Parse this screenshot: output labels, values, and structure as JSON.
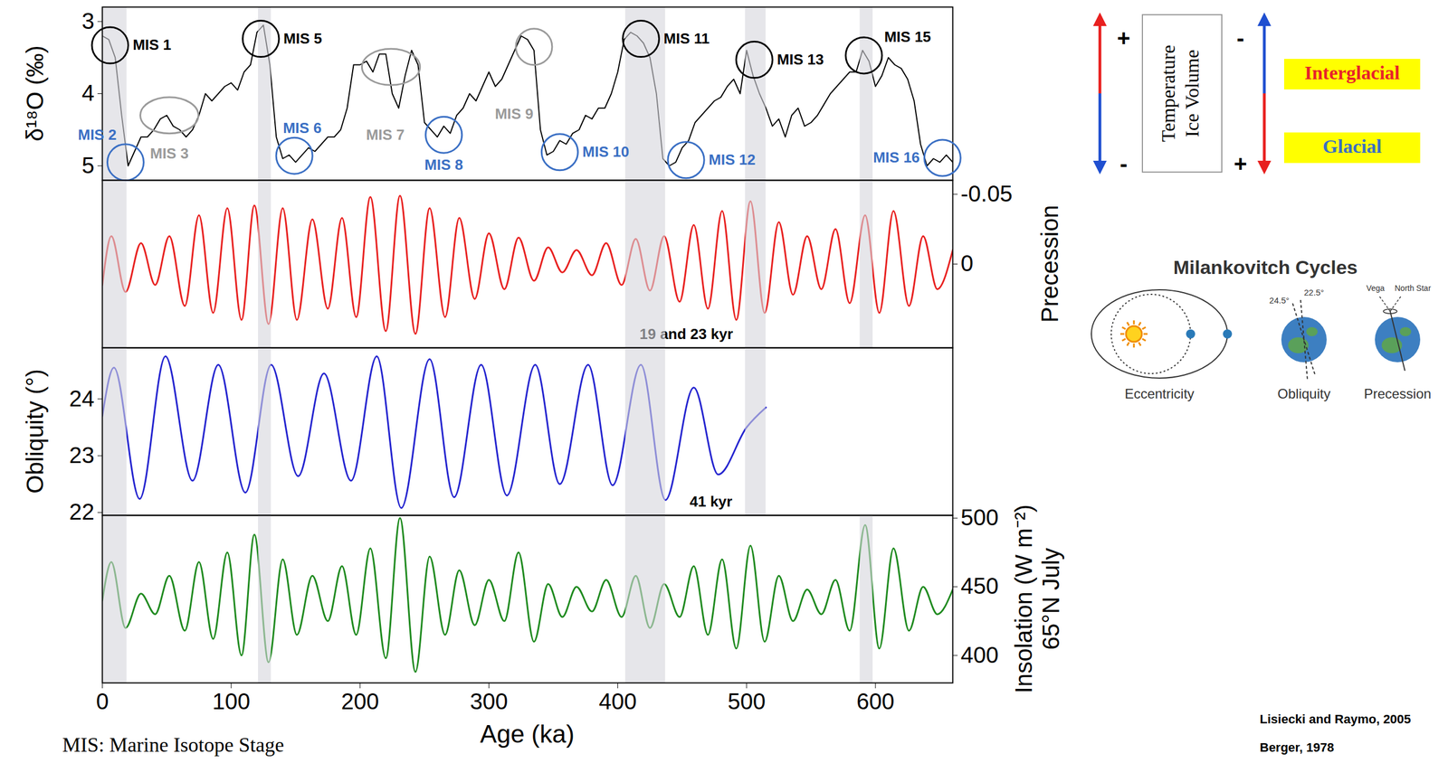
{
  "chart_data": [
    {
      "type": "line",
      "ylabel": "δ¹⁸O (‰)",
      "x": [
        0,
        5,
        10,
        15,
        20,
        25,
        30,
        35,
        40,
        45,
        50,
        55,
        60,
        65,
        70,
        75,
        80,
        85,
        90,
        95,
        100,
        105,
        110,
        115,
        120,
        125,
        130,
        135,
        140,
        145,
        150,
        155,
        160,
        165,
        170,
        175,
        180,
        185,
        190,
        195,
        200,
        205,
        210,
        215,
        220,
        225,
        230,
        235,
        240,
        245,
        250,
        255,
        260,
        265,
        270,
        275,
        280,
        285,
        290,
        295,
        300,
        305,
        310,
        315,
        320,
        325,
        330,
        335,
        340,
        345,
        350,
        355,
        360,
        365,
        370,
        375,
        380,
        385,
        390,
        395,
        400,
        405,
        410,
        415,
        420,
        425,
        430,
        435,
        440,
        445,
        450,
        455,
        460,
        465,
        470,
        475,
        480,
        485,
        490,
        495,
        500,
        505,
        510,
        515,
        520,
        525,
        530,
        535,
        540,
        545,
        550,
        555,
        560,
        565,
        570,
        575,
        580,
        585,
        590,
        595,
        600,
        605,
        610,
        615,
        620,
        625,
        630,
        635,
        640,
        645,
        650,
        655,
        660
      ],
      "series": [
        {
          "color": "#000000",
          "values": [
            3.2,
            3.25,
            3.5,
            4.3,
            5.0,
            4.8,
            4.6,
            4.6,
            4.5,
            4.35,
            4.3,
            4.45,
            4.5,
            4.6,
            4.5,
            4.3,
            4.0,
            4.1,
            4.0,
            3.9,
            3.85,
            3.95,
            3.7,
            3.6,
            3.15,
            3.05,
            3.6,
            4.6,
            4.9,
            4.85,
            4.95,
            4.85,
            4.75,
            4.8,
            4.7,
            4.6,
            4.6,
            4.5,
            4.2,
            3.6,
            3.6,
            3.55,
            3.7,
            3.45,
            3.45,
            4.0,
            4.2,
            3.75,
            3.4,
            3.6,
            4.4,
            4.5,
            4.6,
            4.45,
            4.55,
            4.3,
            4.2,
            4.0,
            4.1,
            3.9,
            3.7,
            3.9,
            3.8,
            3.6,
            3.4,
            3.2,
            3.25,
            3.4,
            4.5,
            4.85,
            4.8,
            4.65,
            4.7,
            4.55,
            4.5,
            4.3,
            4.35,
            4.2,
            4.2,
            4.0,
            3.7,
            3.25,
            3.15,
            3.2,
            3.3,
            3.5,
            4.0,
            4.9,
            5.0,
            4.95,
            4.75,
            4.65,
            4.4,
            4.3,
            4.2,
            4.1,
            4.05,
            3.9,
            3.8,
            4.0,
            3.4,
            3.75,
            4.0,
            4.2,
            4.45,
            4.35,
            4.6,
            4.3,
            4.2,
            4.45,
            4.4,
            4.3,
            4.15,
            4.0,
            3.9,
            3.8,
            3.7,
            3.7,
            3.4,
            3.55,
            3.9,
            3.75,
            3.5,
            3.6,
            3.65,
            3.8,
            4.1,
            4.7,
            5.0,
            4.9,
            4.95,
            4.85,
            4.95
          ]
        }
      ],
      "xlim": [
        0,
        660
      ],
      "ylim": [
        5.2,
        2.8
      ],
      "yticks": [
        3,
        4,
        5
      ],
      "tick_labels": "y",
      "shaded_intervals": [
        [
          0,
          19
        ],
        [
          121,
          131
        ],
        [
          406,
          437
        ],
        [
          499,
          515
        ],
        [
          588,
          598
        ]
      ],
      "annotations": [
        {
          "text": "MIS 1",
          "x": 6,
          "y": 3.33,
          "color": "#000000",
          "marker": "circle"
        },
        {
          "text": "MIS 2",
          "x": 18,
          "y": 4.95,
          "color": "#3a6fc4",
          "marker": "circle"
        },
        {
          "text": "MIS 3",
          "x": 52,
          "y": 4.3,
          "color": "#9a9a9a",
          "marker": "ellipse"
        },
        {
          "text": "MIS 5",
          "x": 123,
          "y": 3.24,
          "color": "#000000",
          "marker": "circle"
        },
        {
          "text": "MIS 6",
          "x": 149,
          "y": 4.86,
          "color": "#3a6fc4",
          "marker": "circle"
        },
        {
          "text": "MIS 7",
          "x": 224,
          "y": 3.63,
          "color": "#9a9a9a",
          "marker": "ellipse"
        },
        {
          "text": "MIS 8",
          "x": 265,
          "y": 4.57,
          "color": "#3a6fc4",
          "marker": "circle"
        },
        {
          "text": "MIS 9",
          "x": 335,
          "y": 3.35,
          "color": "#9a9a9a",
          "marker": "circle"
        },
        {
          "text": "MIS 10",
          "x": 355,
          "y": 4.81,
          "color": "#3a6fc4",
          "marker": "circle"
        },
        {
          "text": "MIS 11",
          "x": 418,
          "y": 3.24,
          "color": "#000000",
          "marker": "circle"
        },
        {
          "text": "MIS 12",
          "x": 453,
          "y": 4.92,
          "color": "#3a6fc4",
          "marker": "circle"
        },
        {
          "text": "MIS 13",
          "x": 506,
          "y": 3.53,
          "color": "#000000",
          "marker": "circle"
        },
        {
          "text": "MIS 15",
          "x": 591,
          "y": 3.47,
          "color": "#000000",
          "marker": "circle"
        },
        {
          "text": "MIS 16",
          "x": 652,
          "y": 4.89,
          "color": "#3a6fc4",
          "marker": "circle"
        }
      ]
    },
    {
      "type": "line",
      "y2label": "Precession",
      "x": [
        0,
        7,
        18,
        30,
        41,
        52,
        64,
        75,
        86,
        97,
        108,
        118,
        129,
        140,
        151,
        163,
        175,
        186,
        197,
        208,
        220,
        231,
        243,
        254,
        266,
        277,
        289,
        300,
        312,
        323,
        335,
        346,
        357,
        368,
        380,
        391,
        403,
        414,
        425,
        436,
        448,
        459,
        470,
        481,
        492,
        503,
        514,
        525,
        536,
        547,
        558,
        569,
        580,
        592,
        603,
        614,
        626,
        637,
        648,
        660
      ],
      "series": [
        {
          "color": "#e8201f",
          "axis": "y2",
          "values": [
            0.015,
            -0.02,
            0.02,
            -0.015,
            0.015,
            -0.02,
            0.03,
            -0.035,
            0.035,
            -0.04,
            0.04,
            -0.042,
            0.043,
            -0.04,
            0.04,
            -0.032,
            0.032,
            -0.033,
            0.038,
            -0.048,
            0.048,
            -0.049,
            0.05,
            -0.04,
            0.038,
            -0.033,
            0.025,
            -0.022,
            0.018,
            -0.019,
            0.012,
            -0.012,
            0.006,
            -0.01,
            0.008,
            -0.015,
            0.015,
            -0.018,
            0.019,
            -0.02,
            0.027,
            -0.028,
            0.032,
            -0.038,
            0.04,
            -0.045,
            0.035,
            -0.03,
            0.022,
            -0.02,
            0.018,
            -0.025,
            0.028,
            -0.035,
            0.035,
            -0.038,
            0.03,
            -0.02,
            0.018,
            -0.01
          ]
        }
      ],
      "xlim": [
        0,
        660
      ],
      "y2lim": [
        0.06,
        -0.06
      ],
      "y2ticks": [
        -0.05,
        0
      ],
      "tick_labels": "y",
      "shaded_intervals": [
        [
          0,
          19
        ],
        [
          121,
          131
        ],
        [
          406,
          437
        ],
        [
          499,
          515
        ],
        [
          588,
          598
        ]
      ],
      "annotations": [
        {
          "text": "19 and 23 kyr"
        }
      ]
    },
    {
      "type": "line",
      "ylabel": "Obliquity (°)",
      "x": [
        0,
        9,
        29,
        49,
        70,
        90,
        111,
        131,
        152,
        172,
        193,
        213,
        232,
        254,
        273,
        294,
        314,
        336,
        355,
        377,
        396,
        418,
        437,
        459,
        478,
        500,
        515
      ],
      "series": [
        {
          "color": "#2323cf",
          "values": [
            23.7,
            24.55,
            22.24,
            24.75,
            22.56,
            24.6,
            22.35,
            24.6,
            22.64,
            24.45,
            22.56,
            24.75,
            22.08,
            24.7,
            22.27,
            24.6,
            22.3,
            24.6,
            22.5,
            24.6,
            22.48,
            24.6,
            22.22,
            24.2,
            22.67,
            23.5,
            23.85
          ]
        }
      ],
      "xlim": [
        0,
        660
      ],
      "ylim": [
        21.95,
        24.9
      ],
      "yticks": [
        22,
        23,
        24
      ],
      "tick_labels": "y",
      "shaded_intervals": [
        [
          0,
          19
        ],
        [
          121,
          131
        ],
        [
          406,
          437
        ],
        [
          499,
          515
        ]
      ],
      "annotations": [
        {
          "text": "41 kyr"
        }
      ]
    },
    {
      "type": "line",
      "y2label": "Insolation (W m⁻²)\n65°N July",
      "xlabel": "Age (ka)",
      "x": [
        0,
        7,
        18,
        30,
        41,
        52,
        64,
        75,
        86,
        97,
        108,
        118,
        129,
        140,
        151,
        163,
        175,
        186,
        197,
        208,
        220,
        231,
        243,
        254,
        266,
        277,
        289,
        300,
        312,
        323,
        335,
        346,
        357,
        368,
        380,
        391,
        403,
        414,
        425,
        436,
        448,
        459,
        470,
        481,
        492,
        503,
        514,
        525,
        536,
        547,
        558,
        569,
        580,
        592,
        603,
        614,
        626,
        637,
        648,
        660
      ],
      "series": [
        {
          "color": "#1e8a1e",
          "axis": "y2",
          "values": [
            440,
            468,
            420,
            445,
            430,
            458,
            418,
            468,
            412,
            475,
            400,
            488,
            395,
            470,
            415,
            458,
            425,
            465,
            415,
            478,
            398,
            500,
            388,
            472,
            415,
            462,
            422,
            455,
            425,
            475,
            410,
            452,
            428,
            450,
            432,
            455,
            428,
            458,
            420,
            452,
            428,
            465,
            415,
            470,
            405,
            480,
            410,
            458,
            425,
            448,
            430,
            455,
            418,
            495,
            405,
            478,
            418,
            450,
            430,
            448
          ]
        }
      ],
      "xlim": [
        0,
        660
      ],
      "xticks": [
        0,
        100,
        200,
        300,
        400,
        500,
        600
      ],
      "y2lim": [
        380,
        502
      ],
      "y2ticks": [
        400,
        450,
        500
      ],
      "shaded_intervals": [
        [
          0,
          19
        ],
        [
          121,
          131
        ],
        [
          406,
          437
        ],
        [
          588,
          598
        ]
      ]
    }
  ],
  "key": {
    "left_signs": [
      "+",
      "-"
    ],
    "labels": [
      "Temperature",
      "Ice Volume"
    ],
    "right_signs": [
      "-",
      "+"
    ],
    "states": [
      {
        "text": "Interglacial",
        "color": "#e8222a"
      },
      {
        "text": "Glacial",
        "color": "#3a6fc4"
      }
    ]
  },
  "diagram": {
    "title": "Milankovitch Cycles",
    "panels": [
      {
        "label": "Eccentricity"
      },
      {
        "label": "Obliquity",
        "angles": [
          "24.5°",
          "22.5°"
        ]
      },
      {
        "label": "Precession",
        "stars": [
          "Vega",
          "North Star"
        ]
      }
    ]
  },
  "footnote": "MIS: Marine Isotope Stage",
  "sources": [
    "Lisiecki and Raymo, 2005",
    "Berger, 1978"
  ]
}
